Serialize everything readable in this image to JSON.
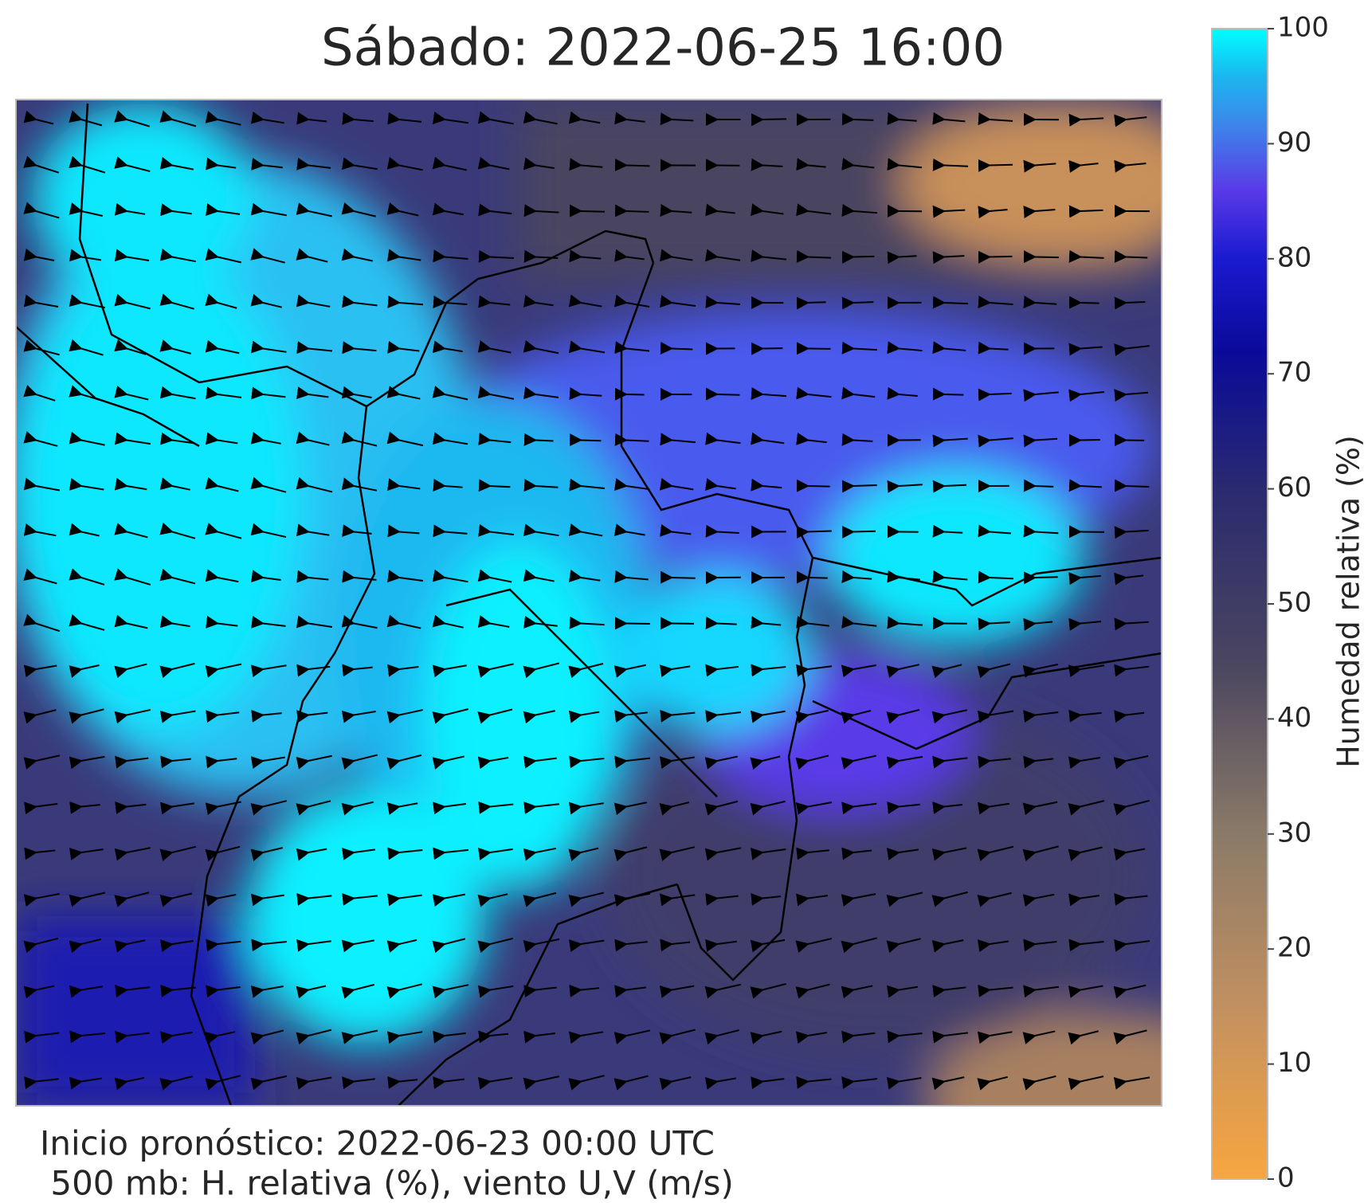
{
  "title": "Sábado: 2022-06-25 16:00",
  "footer": [
    "Inicio pronóstico: 2022-06-23 00:00 UTC",
    " 500 mb: H. relativa (%), viento U,V (m/s)"
  ],
  "colorbar": {
    "label": "Humedad relativa (%)",
    "lim": [
      0,
      100
    ],
    "ticks": [
      0,
      10,
      20,
      30,
      40,
      50,
      60,
      70,
      80,
      90,
      100
    ]
  }
}
